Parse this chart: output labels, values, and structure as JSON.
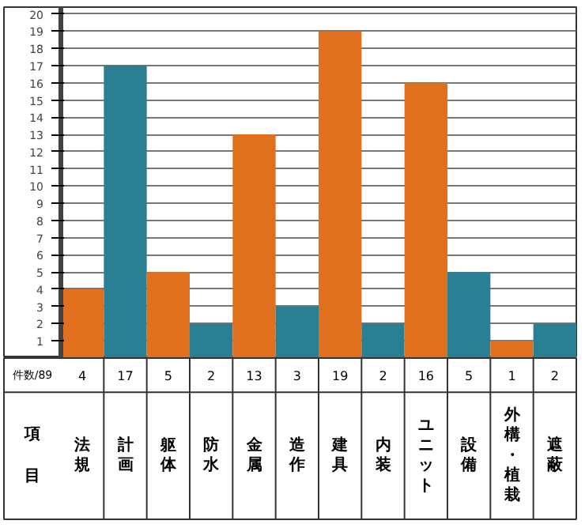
{
  "chart_data": {
    "type": "bar",
    "categories": [
      "法規",
      "計画",
      "躯体",
      "防水",
      "金属",
      "造作",
      "建具",
      "内装",
      "ユニット",
      "設備",
      "外構・植栽",
      "遮蔽"
    ],
    "values": [
      4,
      17,
      5,
      2,
      13,
      3,
      19,
      2,
      16,
      5,
      1,
      2
    ],
    "colors": [
      "#e0701e",
      "#2b7f95",
      "#e0701e",
      "#2b7f95",
      "#e0701e",
      "#2b7f95",
      "#e0701e",
      "#2b7f95",
      "#e0701e",
      "#2b7f95",
      "#e0701e",
      "#2b7f95"
    ],
    "ylim": [
      0,
      20.4
    ],
    "yticks": [
      1,
      2,
      3,
      4,
      5,
      6,
      7,
      8,
      9,
      10,
      11,
      12,
      13,
      14,
      15,
      16,
      17,
      18,
      19,
      20
    ],
    "grid": "y",
    "data_labels": true,
    "ylabel": "件数/89",
    "xlabel": "項目"
  }
}
